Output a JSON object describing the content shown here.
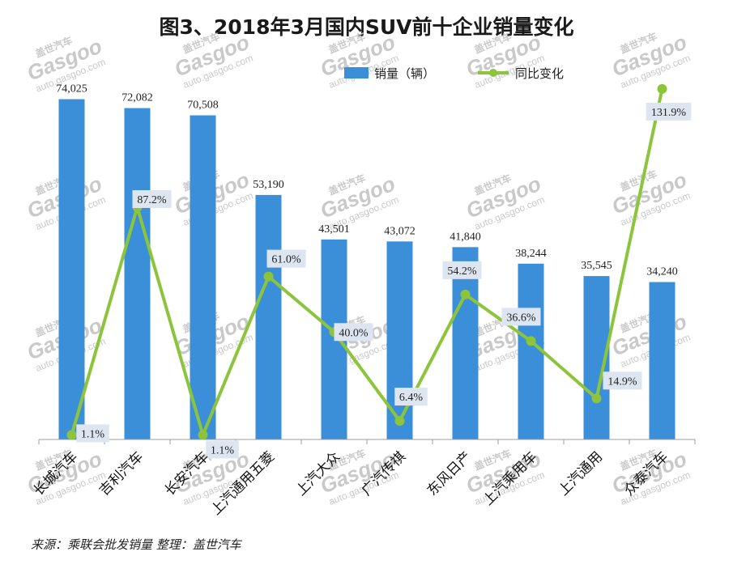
{
  "chart_data": {
    "type": "bar",
    "title": "图3、2018年3月国内SUV前十企业销量变化",
    "categories": [
      "长城汽车",
      "吉利汽车",
      "长安汽车",
      "上汽通用五菱",
      "上汽大众",
      "广汽传祺",
      "东风日产",
      "上汽乘用车",
      "上汽通用",
      "众泰汽车"
    ],
    "series": [
      {
        "name": "销量（辆）",
        "type": "bar",
        "color": "#3b8fd8",
        "values": [
          74025,
          72082,
          70508,
          53190,
          43501,
          43072,
          41840,
          38244,
          35545,
          34240
        ],
        "labels": [
          "74,025",
          "72,082",
          "70,508",
          "53,190",
          "43,501",
          "43,072",
          "41,840",
          "38,244",
          "35,545",
          "34,240"
        ]
      },
      {
        "name": "同比变化",
        "type": "line",
        "color": "#8cc43c",
        "values": [
          1.1,
          87.2,
          1.1,
          61.0,
          40.0,
          6.4,
          54.2,
          36.6,
          14.9,
          131.9
        ],
        "labels": [
          "1.1%",
          "87.2%",
          "1.1%",
          "61.0%",
          "40.0%",
          "6.4%",
          "54.2%",
          "36.6%",
          "14.9%",
          "131.9%"
        ]
      }
    ],
    "ylim": [
      0,
      75000
    ],
    "y2lim": [
      0,
      140
    ],
    "grid": false,
    "legend": "top"
  },
  "source": "来源：乘联会批发销量   整理：盖世汽车",
  "watermark": {
    "brand": "Gasgoo",
    "cn": "盖世汽车",
    "url": "auto.gasgoo.com"
  }
}
